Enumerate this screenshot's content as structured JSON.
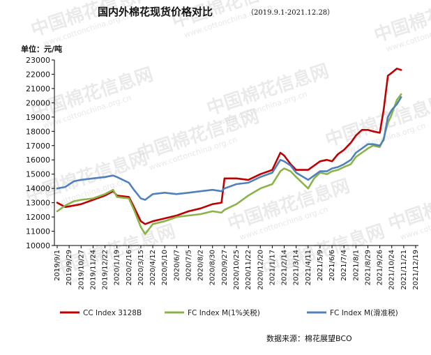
{
  "title": "国内外棉花现货价格对比",
  "subtitle": "（2019.9.1-2021.12.28）",
  "unit_label": "单位：元/吨",
  "source": "数据来源：棉花展望BCO",
  "watermark": {
    "cn": "中国棉花信息网",
    "url": "www.cottonchina.org.cn"
  },
  "chart_data": {
    "type": "line",
    "title": "国内外棉花现货价格对比",
    "ylabel": "单位：元/吨",
    "ylim": [
      10000,
      23000
    ],
    "y_ticks": [
      10000,
      11000,
      12000,
      13000,
      14000,
      15000,
      16000,
      17000,
      18000,
      19000,
      20000,
      21000,
      22000,
      23000
    ],
    "x_tick_labels": [
      "2019/9/1",
      "2019/9/29",
      "2019/10/27",
      "2019/11/24",
      "2019/12/22",
      "2020/1/19",
      "2020/2/16",
      "2020/3/15",
      "2020/4/12",
      "2020/5/10",
      "2020/6/7",
      "2020/7/5",
      "2020/8/2",
      "2020/8/30",
      "2020/9/27",
      "2020/10/25",
      "2020/11/22",
      "2020/12/20",
      "2021/1/17",
      "2021/2/14",
      "2021/3/14",
      "2021/4/11",
      "2021/5/9",
      "2021/6/6",
      "2021/7/4",
      "2021/8/1",
      "2021/8/29",
      "2021/9/26",
      "2021/10/24",
      "2021/11/21",
      "2021/12/19"
    ],
    "x_range": [
      "2019/9/1",
      "2021/12/19"
    ],
    "grid": false,
    "legend_position": "bottom",
    "series": [
      {
        "name": "CC Index 3128B",
        "color": "#c00000",
        "x": [
          "2019/9/1",
          "2019/9/20",
          "2019/10/10",
          "2019/10/27",
          "2019/11/24",
          "2019/12/22",
          "2020/1/10",
          "2020/1/19",
          "2020/2/16",
          "2020/2/28",
          "2020/3/15",
          "2020/3/25",
          "2020/4/12",
          "2020/5/10",
          "2020/6/7",
          "2020/7/5",
          "2020/8/2",
          "2020/8/30",
          "2020/9/20",
          "2020/9/27",
          "2020/10/25",
          "2020/11/22",
          "2020/12/20",
          "2021/1/17",
          "2021/2/5",
          "2021/2/14",
          "2021/3/1",
          "2021/3/14",
          "2021/4/11",
          "2021/4/25",
          "2021/5/9",
          "2021/5/25",
          "2021/6/6",
          "2021/6/20",
          "2021/7/4",
          "2021/7/20",
          "2021/8/1",
          "2021/8/15",
          "2021/8/29",
          "2021/9/10",
          "2021/9/26",
          "2021/10/5",
          "2021/10/15",
          "2021/10/24",
          "2021/11/5",
          "2021/11/15"
        ],
        "values": [
          13000,
          12700,
          12800,
          12900,
          13200,
          13500,
          13800,
          13500,
          13400,
          12700,
          11700,
          11500,
          11700,
          11900,
          12100,
          12400,
          12600,
          12900,
          13000,
          14700,
          14700,
          14600,
          15000,
          15300,
          16500,
          16300,
          15700,
          15300,
          15300,
          15600,
          15900,
          16000,
          15900,
          16400,
          16700,
          17200,
          17700,
          18100,
          18100,
          18000,
          17900,
          19500,
          21900,
          22100,
          22400,
          22300
        ]
      },
      {
        "name": "FC Index M(1%关税)",
        "color": "#8cb34a",
        "x": [
          "2019/9/1",
          "2019/9/20",
          "2019/10/10",
          "2019/10/27",
          "2019/11/24",
          "2019/12/22",
          "2020/1/10",
          "2020/1/19",
          "2020/2/16",
          "2020/2/28",
          "2020/3/15",
          "2020/3/25",
          "2020/4/12",
          "2020/5/10",
          "2020/6/7",
          "2020/7/5",
          "2020/8/2",
          "2020/8/30",
          "2020/9/20",
          "2020/9/27",
          "2020/10/25",
          "2020/11/22",
          "2020/12/20",
          "2021/1/17",
          "2021/2/5",
          "2021/2/14",
          "2021/3/1",
          "2021/3/14",
          "2021/4/11",
          "2021/4/25",
          "2021/5/9",
          "2021/5/25",
          "2021/6/6",
          "2021/6/20",
          "2021/7/4",
          "2021/7/20",
          "2021/8/1",
          "2021/8/15",
          "2021/8/29",
          "2021/9/10",
          "2021/9/26",
          "2021/10/5",
          "2021/10/15",
          "2021/10/24",
          "2021/11/5",
          "2021/11/15"
        ],
        "values": [
          12400,
          12800,
          13100,
          13200,
          13300,
          13600,
          13900,
          13400,
          13300,
          12500,
          11300,
          10800,
          11500,
          11700,
          12000,
          12100,
          12200,
          12400,
          12300,
          12500,
          12900,
          13500,
          14000,
          14300,
          15200,
          15400,
          15200,
          14800,
          14000,
          14700,
          15100,
          15000,
          15200,
          15300,
          15500,
          15700,
          16200,
          16500,
          16800,
          17000,
          16900,
          17500,
          18600,
          19200,
          20200,
          20600
        ]
      },
      {
        "name": "FC Index M(滑准税)",
        "color": "#4f81bd",
        "x": [
          "2019/9/1",
          "2019/9/20",
          "2019/10/10",
          "2019/10/27",
          "2019/11/24",
          "2019/12/22",
          "2020/1/10",
          "2020/1/19",
          "2020/2/16",
          "2020/2/28",
          "2020/3/15",
          "2020/3/25",
          "2020/4/12",
          "2020/5/10",
          "2020/6/7",
          "2020/7/5",
          "2020/8/2",
          "2020/8/30",
          "2020/9/20",
          "2020/9/27",
          "2020/10/25",
          "2020/11/22",
          "2020/12/20",
          "2021/1/17",
          "2021/2/5",
          "2021/2/14",
          "2021/3/1",
          "2021/3/14",
          "2021/4/11",
          "2021/4/25",
          "2021/5/9",
          "2021/5/25",
          "2021/6/6",
          "2021/6/20",
          "2021/7/4",
          "2021/7/20",
          "2021/8/1",
          "2021/8/15",
          "2021/8/29",
          "2021/9/10",
          "2021/9/26",
          "2021/10/5",
          "2021/10/15",
          "2021/10/24",
          "2021/11/5",
          "2021/11/15"
        ],
        "values": [
          14000,
          14100,
          14500,
          14600,
          14700,
          14800,
          14900,
          14800,
          14400,
          13900,
          13300,
          13200,
          13600,
          13700,
          13600,
          13700,
          13800,
          13900,
          13800,
          14000,
          14300,
          14400,
          14800,
          15100,
          16000,
          15900,
          15600,
          15100,
          14600,
          14900,
          15200,
          15200,
          15400,
          15500,
          15700,
          16000,
          16500,
          16800,
          17100,
          17100,
          17000,
          17400,
          19000,
          19500,
          19900,
          20400
        ]
      }
    ]
  }
}
